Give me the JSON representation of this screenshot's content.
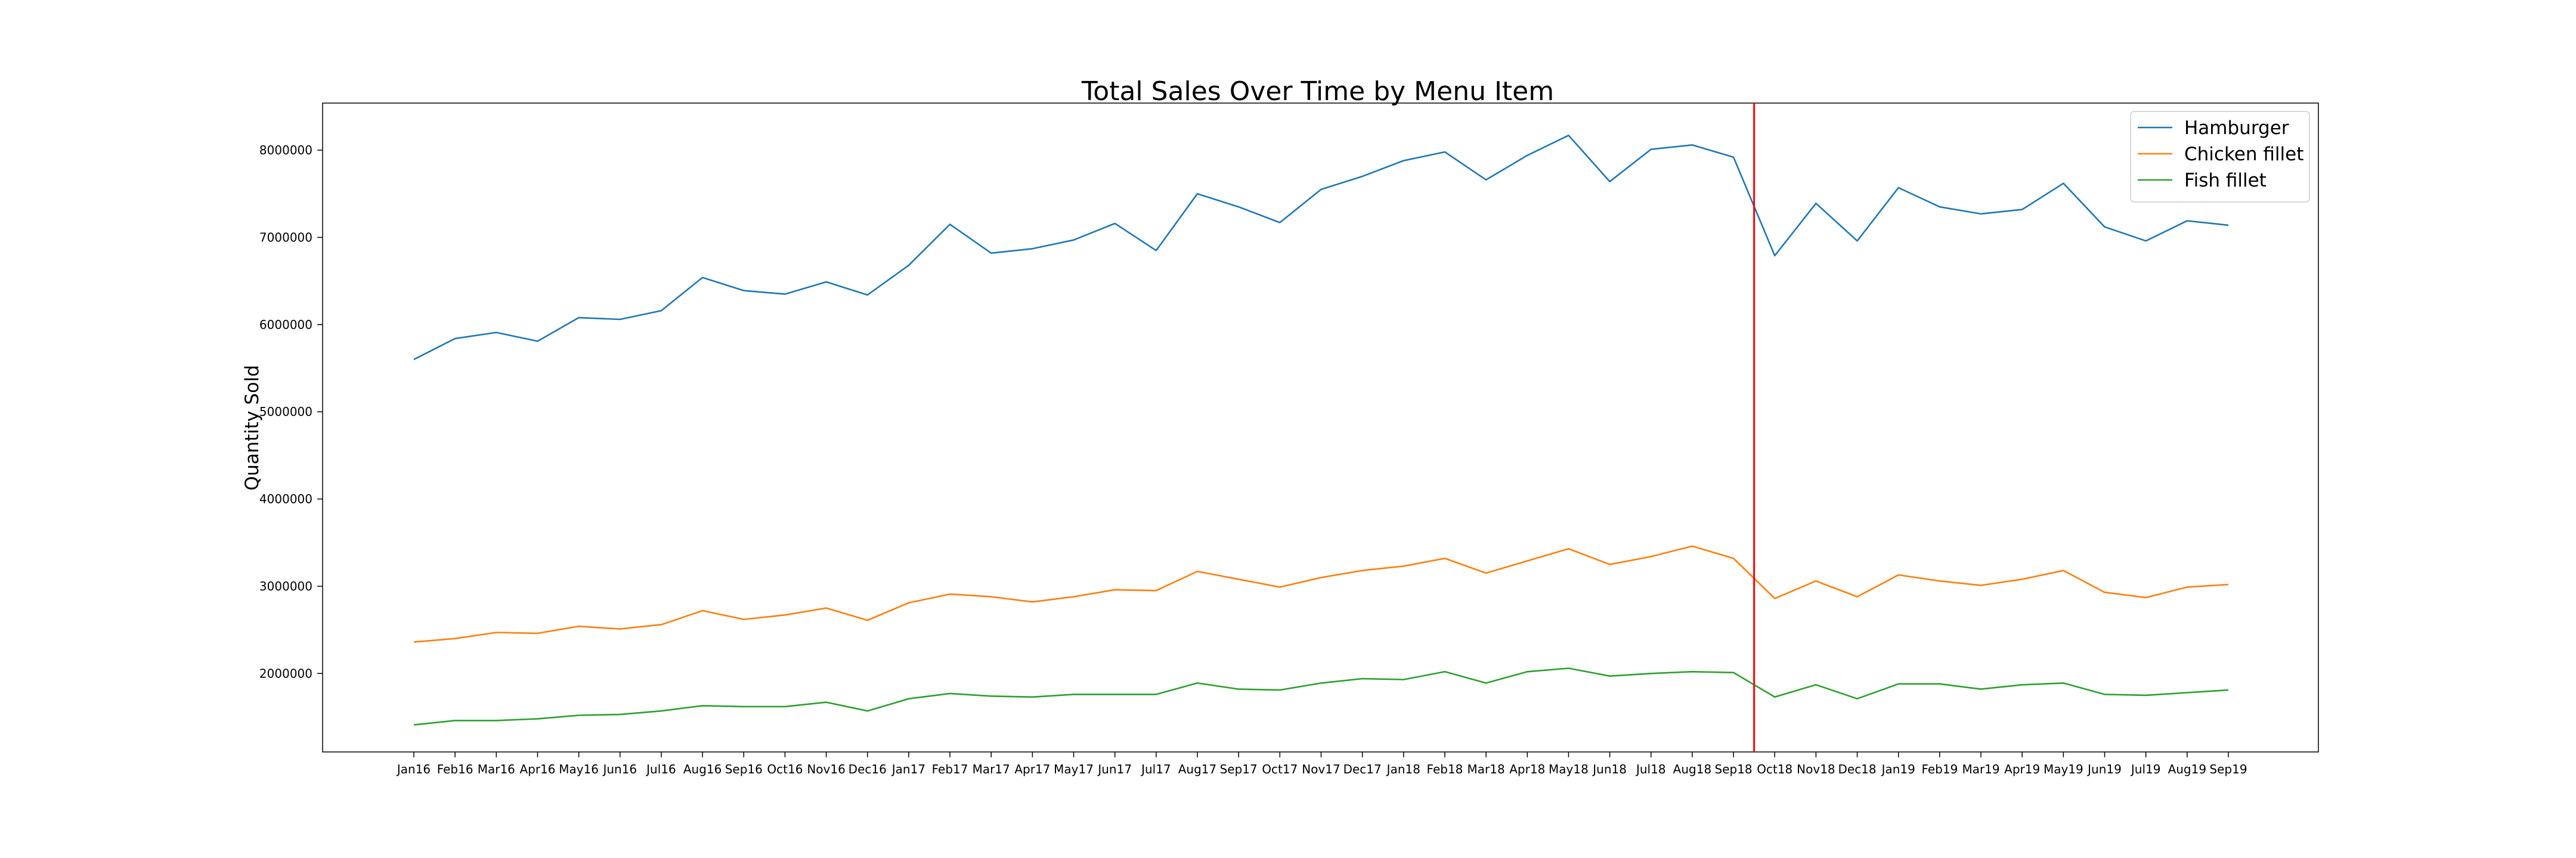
{
  "chart_data": {
    "type": "line",
    "title": "Total Sales Over Time by Menu Item",
    "xlabel": "",
    "ylabel": "Quantity Sold",
    "categories": [
      "Jan16",
      "Feb16",
      "Mar16",
      "Apr16",
      "May16",
      "Jun16",
      "Jul16",
      "Aug16",
      "Sep16",
      "Oct16",
      "Nov16",
      "Dec16",
      "Jan17",
      "Feb17",
      "Mar17",
      "Apr17",
      "May17",
      "Jun17",
      "Jul17",
      "Aug17",
      "Sep17",
      "Oct17",
      "Nov17",
      "Dec17",
      "Jan18",
      "Feb18",
      "Mar18",
      "Apr18",
      "May18",
      "Jun18",
      "Jul18",
      "Aug18",
      "Sep18",
      "Oct18",
      "Nov18",
      "Dec18",
      "Jan19",
      "Feb19",
      "Mar19",
      "Apr19",
      "May19",
      "Jun19",
      "Jul19",
      "Aug19",
      "Sep19"
    ],
    "ylim": [
      1100000,
      8540000
    ],
    "yticks": [
      2000000,
      3000000,
      4000000,
      5000000,
      6000000,
      7000000,
      8000000
    ],
    "ytick_labels": [
      "2000000",
      "3000000",
      "4000000",
      "5000000",
      "6000000",
      "7000000",
      "8000000"
    ],
    "grid": false,
    "legend_position": "top-right",
    "series": [
      {
        "name": "Hamburger",
        "color": "#1f77b4",
        "values": [
          5600000,
          5840000,
          5910000,
          5810000,
          6080000,
          6060000,
          6160000,
          6540000,
          6390000,
          6350000,
          6490000,
          6340000,
          6680000,
          7150000,
          6820000,
          6870000,
          6970000,
          7160000,
          6850000,
          7500000,
          7350000,
          7170000,
          7550000,
          7700000,
          7880000,
          7980000,
          7660000,
          7940000,
          8170000,
          7640000,
          8010000,
          8060000,
          7920000,
          6790000,
          7390000,
          6960000,
          7570000,
          7350000,
          7270000,
          7320000,
          7620000,
          7120000,
          6960000,
          7190000,
          7140000
        ]
      },
      {
        "name": "Chicken fillet",
        "color": "#ff7f0e",
        "values": [
          2360000,
          2400000,
          2470000,
          2460000,
          2540000,
          2510000,
          2560000,
          2720000,
          2620000,
          2670000,
          2750000,
          2610000,
          2810000,
          2910000,
          2880000,
          2820000,
          2880000,
          2960000,
          2950000,
          3170000,
          3080000,
          2990000,
          3100000,
          3180000,
          3230000,
          3320000,
          3150000,
          3290000,
          3430000,
          3250000,
          3340000,
          3460000,
          3320000,
          2860000,
          3060000,
          2880000,
          3130000,
          3060000,
          3010000,
          3080000,
          3180000,
          2930000,
          2870000,
          2990000,
          3020000
        ]
      },
      {
        "name": "Fish fillet",
        "color": "#2ca02c",
        "values": [
          1410000,
          1460000,
          1460000,
          1480000,
          1520000,
          1530000,
          1570000,
          1630000,
          1620000,
          1620000,
          1670000,
          1570000,
          1710000,
          1770000,
          1740000,
          1730000,
          1760000,
          1760000,
          1760000,
          1890000,
          1820000,
          1810000,
          1890000,
          1940000,
          1930000,
          2020000,
          1890000,
          2020000,
          2060000,
          1970000,
          2000000,
          2020000,
          2010000,
          1730000,
          1870000,
          1710000,
          1880000,
          1880000,
          1820000,
          1870000,
          1890000,
          1760000,
          1750000,
          1780000,
          1810000
        ]
      }
    ],
    "annotations": [
      {
        "type": "vertical-line",
        "x_between": [
          "Sep18",
          "Oct18"
        ],
        "color": "#ff0000"
      }
    ]
  }
}
